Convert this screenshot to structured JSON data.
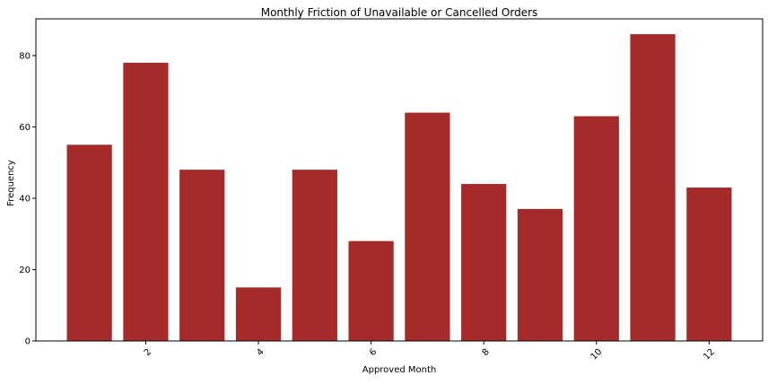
{
  "chart_data": {
    "type": "bar",
    "title": "Monthly Friction of Unavailable or Cancelled Orders",
    "xlabel": "Approved Month",
    "ylabel": "Frequency",
    "x": [
      1,
      2,
      3,
      4,
      5,
      6,
      7,
      8,
      9,
      10,
      11,
      12
    ],
    "values": [
      55,
      78,
      48,
      15,
      48,
      28,
      64,
      44,
      37,
      63,
      86,
      43
    ],
    "xticks": [
      2,
      4,
      6,
      8,
      10,
      12
    ],
    "xtick_rotation": 45,
    "yticks": [
      0,
      20,
      40,
      60,
      80
    ],
    "xlim": [
      0.05,
      12.95
    ],
    "ylim": [
      0,
      90.3
    ],
    "bar_color": "#a52a2a",
    "grid": false,
    "legend": "none"
  }
}
